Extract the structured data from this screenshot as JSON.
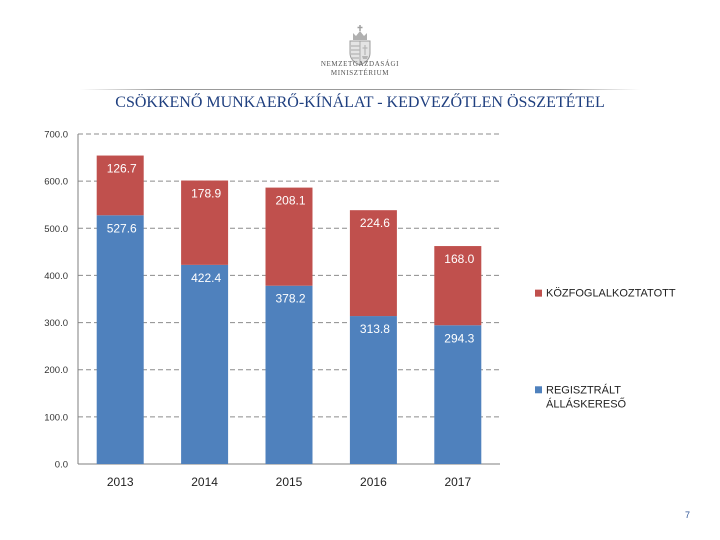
{
  "header": {
    "logo_line1": "NEMZETGAZDASÁGI",
    "logo_line2": "MINISZTÉRIUM",
    "logo_icon": "hungarian-coat-of-arms"
  },
  "slide": {
    "page_number": "7"
  },
  "chart_data": {
    "type": "bar",
    "stacked": true,
    "title": "CSÖKKENŐ MUNKAERŐ-KÍNÁLAT - KEDVEZŐTLEN ÖSSZETÉTEL",
    "categories": [
      "2013",
      "2014",
      "2015",
      "2016",
      "2017"
    ],
    "series": [
      {
        "name": "REGISZTRÁLT ÁLLÁSKERESŐ",
        "values": [
          527.6,
          422.4,
          378.2,
          313.8,
          294.3
        ],
        "color": "#4f81bd"
      },
      {
        "name": "KÖZFOGLALKOZTATOTT",
        "values": [
          126.7,
          178.9,
          208.1,
          224.6,
          168.0
        ],
        "color": "#c0504d"
      }
    ],
    "value_labels": [
      [
        "527.6",
        "422.4",
        "378.2",
        "313.8",
        "294.3"
      ],
      [
        "126.7",
        "178.9",
        "208.1",
        "224.6",
        "168.0"
      ]
    ],
    "legend_lines": [
      [
        "KÖZFOGLALKOZTATOTT"
      ],
      [
        "REGISZTRÁLT",
        "ÁLLÁSKERESŐ"
      ]
    ],
    "y_ticks": [
      "0.0",
      "100.0",
      "200.0",
      "300.0",
      "400.0",
      "500.0",
      "600.0",
      "700.0"
    ],
    "ylim": [
      0,
      700
    ],
    "grid": "dashed horizontal",
    "legend_position": "right"
  }
}
